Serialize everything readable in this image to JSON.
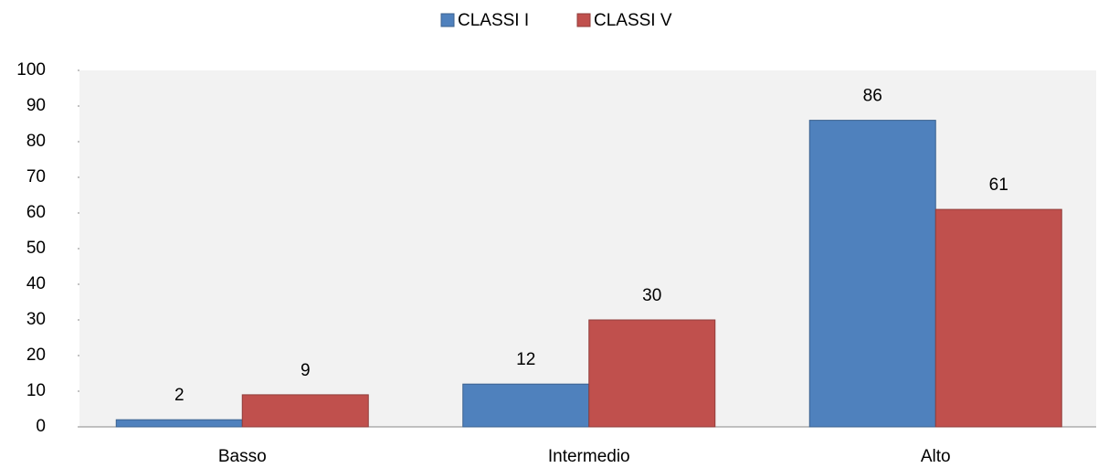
{
  "chart_data": {
    "type": "bar",
    "categories": [
      "Basso",
      "Intermedio",
      "Alto"
    ],
    "series": [
      {
        "name": "CLASSI I",
        "color": "#4f81bd",
        "values": [
          2,
          12,
          86
        ]
      },
      {
        "name": "CLASSI V",
        "color": "#c0504d",
        "values": [
          9,
          30,
          61
        ]
      }
    ],
    "ylim": [
      0,
      100
    ],
    "yticks": [
      0,
      10,
      20,
      30,
      40,
      50,
      60,
      70,
      80,
      90,
      100
    ],
    "legend": "top"
  }
}
